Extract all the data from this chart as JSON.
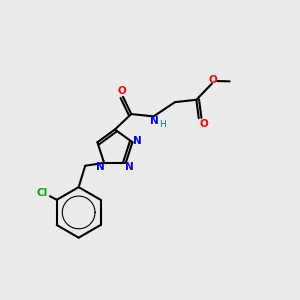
{
  "background_color": "#ebebeb",
  "bond_color": "#000000",
  "atom_colors": {
    "N": "#0000ff",
    "O": "#ff0000",
    "Cl": "#00aa00",
    "C": "#000000",
    "H": "#008080"
  },
  "figsize": [
    3.0,
    3.0
  ],
  "dpi": 100
}
